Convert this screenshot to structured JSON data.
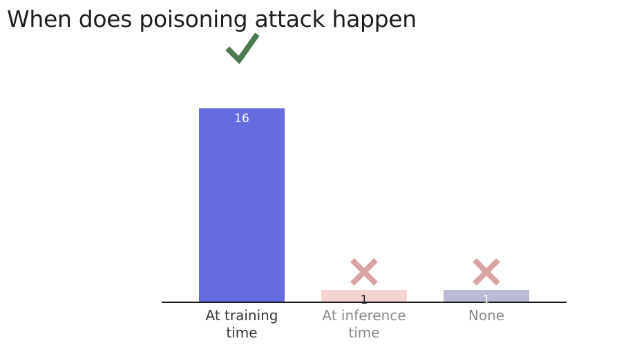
{
  "title": "When does poisoning attack happen",
  "chart_data": {
    "type": "bar",
    "title": "When does poisoning attack happen",
    "categories": [
      [
        "At training",
        "time"
      ],
      [
        "At inference",
        "time"
      ],
      [
        "None"
      ]
    ],
    "values": [
      16,
      1,
      1
    ],
    "marks": [
      "check-icon",
      "cross-icon",
      "cross-icon"
    ],
    "bar_colors": [
      "#656ce0",
      "#f6d3d3",
      "#babad4"
    ],
    "label_colors": [
      "#333333",
      "#8a8a8a",
      "#8a8a8a"
    ],
    "value_label_colors": [
      "#ffffff",
      "#222222",
      "#ffffff"
    ],
    "check_color": "#4b7a50",
    "cross_color": "#d8a3a3",
    "ylim": [
      0,
      16
    ],
    "grid": false,
    "xlabel": "",
    "ylabel": ""
  }
}
